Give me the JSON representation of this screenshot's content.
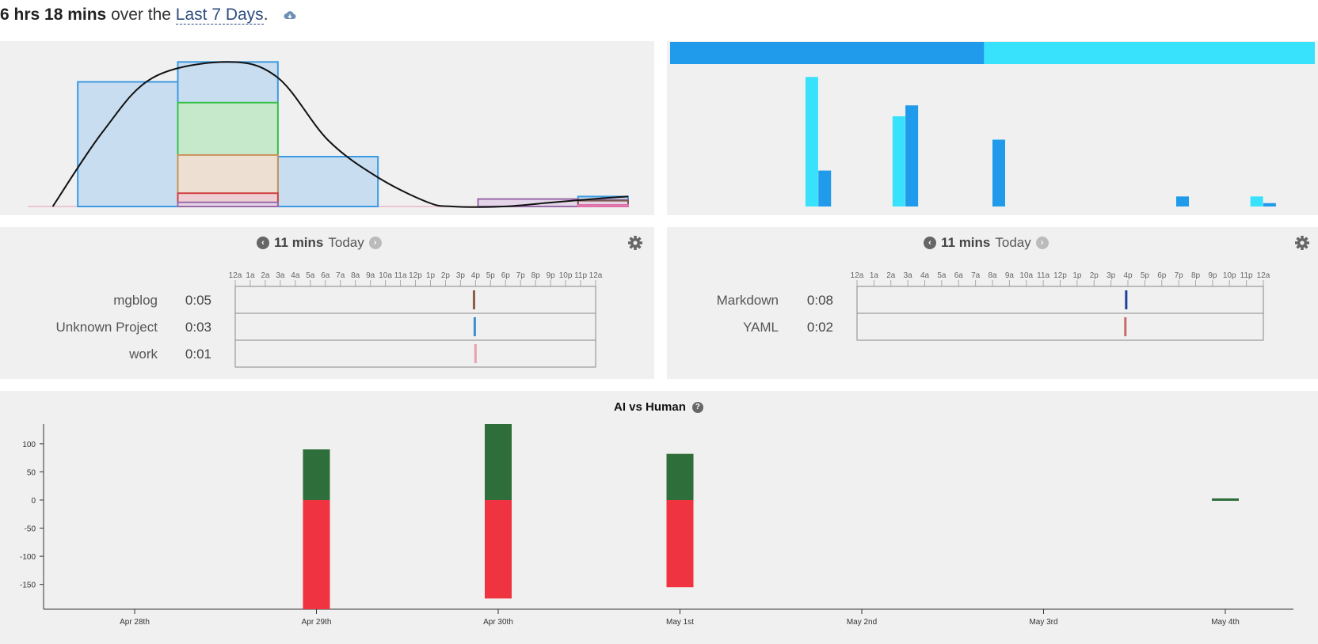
{
  "header": {
    "total": "6 hrs 18 mins",
    "middle": " over the ",
    "range": "Last 7 Days",
    "end": ".",
    "icon": "cloud-download-icon"
  },
  "projects_timeline": {
    "total": "11 mins",
    "day": "Today",
    "hour_ticks": [
      "12a",
      "1a",
      "2a",
      "3a",
      "4a",
      "5a",
      "6a",
      "7a",
      "8a",
      "9a",
      "10a",
      "11a",
      "12p",
      "1p",
      "2p",
      "3p",
      "4p",
      "5p",
      "6p",
      "7p",
      "8p",
      "9p",
      "10p",
      "11p",
      "12a"
    ],
    "rows": [
      {
        "name": "mgblog",
        "time": "0:05",
        "color": "#8b5a4a",
        "hour": 15.9
      },
      {
        "name": "Unknown Project",
        "time": "0:03",
        "color": "#3b8fd0",
        "hour": 15.95
      },
      {
        "name": "work",
        "time": "0:01",
        "color": "#e8a0b0",
        "hour": 16.0
      }
    ]
  },
  "languages_timeline": {
    "total": "11 mins",
    "day": "Today",
    "hour_ticks": [
      "12a",
      "1a",
      "2a",
      "3a",
      "4a",
      "5a",
      "6a",
      "7a",
      "8a",
      "9a",
      "10a",
      "11a",
      "12p",
      "1p",
      "2p",
      "3p",
      "4p",
      "5p",
      "6p",
      "7p",
      "8p",
      "9p",
      "10p",
      "11p",
      "12a"
    ],
    "rows": [
      {
        "name": "Markdown",
        "time": "0:08",
        "color": "#1d3f9e",
        "hour": 15.9
      },
      {
        "name": "YAML",
        "time": "0:02",
        "color": "#c96a6a",
        "hour": 15.85
      }
    ]
  },
  "chart_data": [
    {
      "type": "area",
      "id": "coding-activity-histogram",
      "x_range": [
        0,
        24
      ],
      "series": [
        {
          "color": "#3b9ae1",
          "fill": "#c8ddf0",
          "bins": [
            {
              "x0": 2,
              "x1": 6,
              "y": 150
            },
            {
              "x0": 6,
              "x1": 10,
              "y": 174
            },
            {
              "x0": 10,
              "x1": 14,
              "y": 60
            },
            {
              "x0": 18,
              "x1": 22,
              "y": 0
            },
            {
              "x0": 22,
              "x1": 24,
              "y": 12
            }
          ]
        },
        {
          "color": "#3cc04a",
          "fill": "#c6e9cc",
          "bins": [
            {
              "x0": 6,
              "x1": 10,
              "y": 125
            }
          ]
        },
        {
          "color": "#c8955a",
          "fill": "#eedfd3",
          "bins": [
            {
              "x0": 6,
              "x1": 10,
              "y": 62
            }
          ]
        },
        {
          "color": "#d04040",
          "fill": "#eed0d4",
          "bins": [
            {
              "x0": 6,
              "x1": 10,
              "y": 16
            }
          ]
        },
        {
          "color": "#9a6aa8",
          "fill": "#e4d6e8",
          "bins": [
            {
              "x0": 6,
              "x1": 10,
              "y": 5
            },
            {
              "x0": 18,
              "x1": 22,
              "y": 9
            },
            {
              "x0": 22,
              "x1": 24,
              "y": 8
            }
          ]
        },
        {
          "color": "#7a5a50",
          "fill": "none",
          "bins": [
            {
              "x0": 22,
              "x1": 24,
              "y": 7
            }
          ]
        },
        {
          "color": "#e070a8",
          "fill": "none",
          "bins": [
            {
              "x0": 22,
              "x1": 24,
              "y": 2
            }
          ]
        }
      ],
      "curve": [
        [
          1,
          0
        ],
        [
          3,
          90
        ],
        [
          5,
          155
        ],
        [
          8,
          174
        ],
        [
          10,
          155
        ],
        [
          12,
          80
        ],
        [
          14,
          35
        ],
        [
          16,
          5
        ],
        [
          17,
          0
        ],
        [
          19,
          0
        ],
        [
          21,
          5
        ],
        [
          23,
          10
        ],
        [
          24,
          12
        ]
      ],
      "ymax": 180
    },
    {
      "type": "bar",
      "id": "category-bars",
      "stacked_bar": [
        {
          "color": "#209aea",
          "fraction": 0.487
        },
        {
          "color": "#38e2fc",
          "fraction": 0.513
        }
      ],
      "bars": [
        {
          "x": 0.21,
          "color": "#38e2fc",
          "value": 155
        },
        {
          "x": 0.23,
          "color": "#209aea",
          "value": 43
        },
        {
          "x": 0.345,
          "color": "#38e2fc",
          "value": 108
        },
        {
          "x": 0.365,
          "color": "#209aea",
          "value": 121
        },
        {
          "x": 0.5,
          "color": "#209aea",
          "value": 80
        },
        {
          "x": 0.785,
          "color": "#209aea",
          "value": 12
        },
        {
          "x": 0.9,
          "color": "#38e2fc",
          "value": 12
        },
        {
          "x": 0.92,
          "color": "#209aea",
          "value": 4
        }
      ],
      "ymax": 160
    },
    {
      "type": "bar",
      "id": "ai-vs-human",
      "title": "AI vs Human",
      "categories": [
        "Apr 28th",
        "Apr 29th",
        "Apr 30th",
        "May 1st",
        "May 2nd",
        "May 3rd",
        "May 4th"
      ],
      "ylim": [
        -200,
        135
      ],
      "yticks": [
        100,
        50,
        0,
        -50,
        -100,
        -150
      ],
      "series": [
        {
          "color": "#2e6e3a",
          "values": [
            0,
            90,
            135,
            82,
            0,
            0,
            2
          ]
        },
        {
          "color": "#ef3340",
          "values": [
            0,
            -200,
            -175,
            -155,
            0,
            0,
            0
          ]
        }
      ]
    }
  ]
}
